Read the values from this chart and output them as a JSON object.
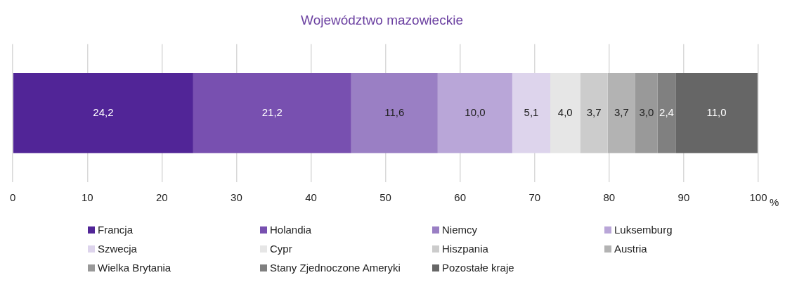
{
  "chart_data": {
    "type": "bar",
    "title": "Województwo mazowieckie",
    "xlabel": "%",
    "orientation": "horizontal",
    "stacked": true,
    "categories": [
      null
    ],
    "series": [
      {
        "name": "Francja",
        "color": "#512597",
        "values": [
          24.2
        ],
        "value_labels": [
          "24,2"
        ]
      },
      {
        "name": "Holandia",
        "color": "#7850b0",
        "values": [
          21.2
        ],
        "value_labels": [
          "21,2"
        ]
      },
      {
        "name": "Niemcy",
        "color": "#9a7fc4",
        "values": [
          11.6
        ],
        "value_labels": [
          "11,6"
        ]
      },
      {
        "name": "Luksemburg",
        "color": "#b9a6d8",
        "values": [
          10.0
        ],
        "value_labels": [
          "10,0"
        ]
      },
      {
        "name": "Szwecja",
        "color": "#ddd4ec",
        "values": [
          5.1
        ],
        "value_labels": [
          "5,1"
        ]
      },
      {
        "name": "Cypr",
        "color": "#e6e6e6",
        "values": [
          4.0
        ],
        "value_labels": [
          "4,0"
        ]
      },
      {
        "name": "Hiszpania",
        "color": "#cccccc",
        "values": [
          3.7
        ],
        "value_labels": [
          "3,7"
        ]
      },
      {
        "name": "Austria",
        "color": "#b3b3b3",
        "values": [
          3.7
        ],
        "value_labels": [
          "3,7"
        ]
      },
      {
        "name": "Wielka Brytania",
        "color": "#999999",
        "values": [
          3.0
        ],
        "value_labels": [
          "3,0"
        ]
      },
      {
        "name": "Stany Zjednoczone Ameryki",
        "color": "#808080",
        "values": [
          2.4
        ],
        "value_labels": [
          "2,4"
        ]
      },
      {
        "name": "Pozostałe kraje",
        "color": "#666666",
        "values": [
          11.0
        ],
        "value_labels": [
          "11,0"
        ]
      }
    ],
    "xlim": [
      0,
      100
    ],
    "xticks": [
      0,
      10,
      20,
      30,
      40,
      50,
      60,
      70,
      80,
      90,
      100
    ],
    "grid": "x",
    "legend": "bottom",
    "tick_labels": "x"
  }
}
